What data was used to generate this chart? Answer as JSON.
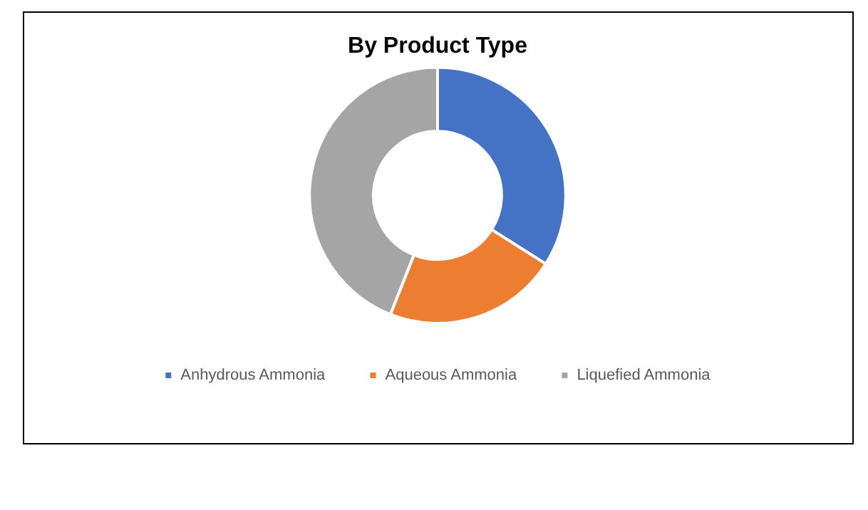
{
  "chart_data": {
    "type": "donut",
    "title": "By Product Type",
    "categories": [
      "Anhydrous Ammonia",
      "Aqueous Ammonia",
      "Liquefied Ammonia"
    ],
    "values": [
      34,
      22,
      44
    ],
    "colors": [
      "#4472c4",
      "#ed7d31",
      "#a5a5a5"
    ],
    "legend": "bottom"
  }
}
